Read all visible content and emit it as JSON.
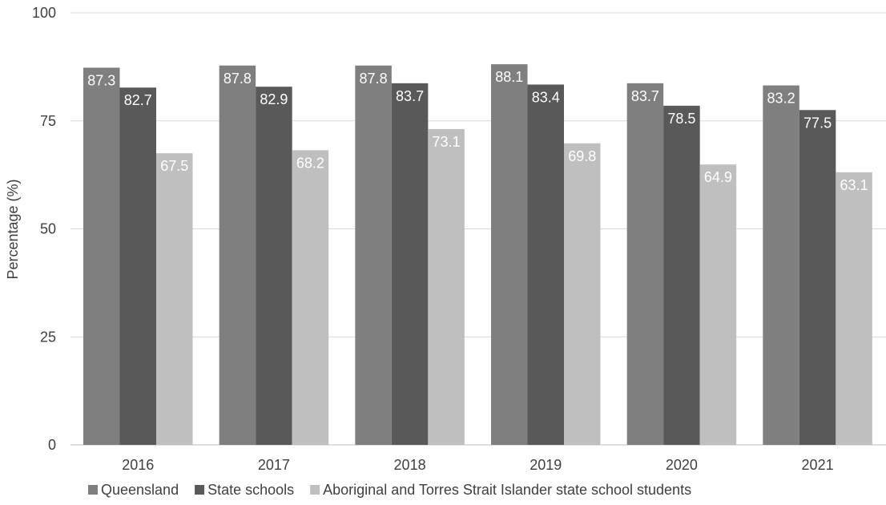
{
  "chart_data": {
    "type": "bar",
    "title": "",
    "xlabel": "",
    "ylabel": "Percentage (%)",
    "ylim": [
      0,
      100
    ],
    "yticks": [
      0,
      25,
      50,
      75,
      100
    ],
    "grid": true,
    "legend_position": "bottom",
    "categories": [
      "2016",
      "2017",
      "2018",
      "2019",
      "2020",
      "2021"
    ],
    "series": [
      {
        "name": "Queensland",
        "color": "#7f7f7f",
        "values": [
          87.3,
          87.8,
          87.8,
          88.1,
          83.7,
          83.2
        ]
      },
      {
        "name": "State schools",
        "color": "#595959",
        "values": [
          82.7,
          82.9,
          83.7,
          83.4,
          78.5,
          77.5
        ]
      },
      {
        "name": "Aboriginal and Torres Strait Islander state school students",
        "color": "#bfbfbf",
        "values": [
          67.5,
          68.2,
          73.1,
          69.8,
          64.9,
          63.1
        ]
      }
    ]
  }
}
